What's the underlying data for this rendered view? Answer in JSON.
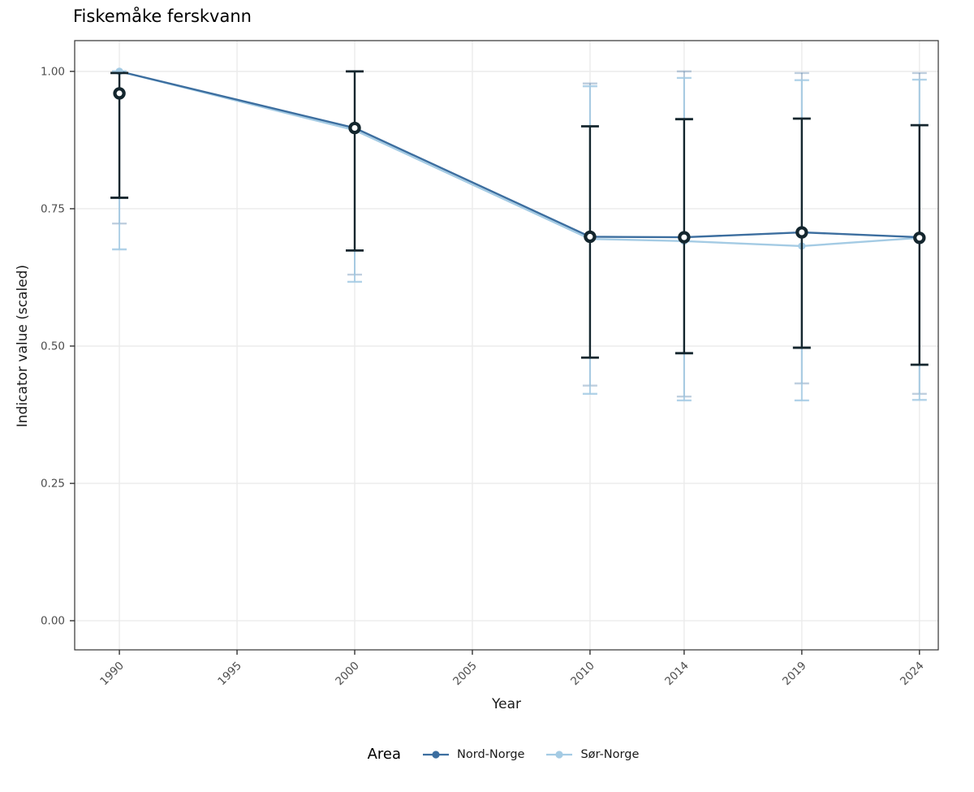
{
  "title": "Fiskemåke ferskvann",
  "axes": {
    "x_label": "Year",
    "y_label": "Indicator value (scaled)"
  },
  "legend": {
    "title": "Area",
    "items": [
      {
        "label": "Nord-Norge",
        "color": "#3c6e9f"
      },
      {
        "label": "Sør-Norge",
        "color": "#a4cbe4"
      }
    ]
  },
  "chart_data": {
    "type": "line",
    "title": "Fiskemåke ferskvann",
    "xlabel": "Year",
    "ylabel": "Indicator value (scaled)",
    "x": [
      1990,
      2000,
      2010,
      2014,
      2019,
      2024
    ],
    "x_ticks": [
      "1990",
      "1995",
      "2000",
      "2005",
      "2010",
      "2014",
      "2019",
      "2024"
    ],
    "x_tick_years": [
      1990,
      1995,
      2000,
      2005,
      2010,
      2014,
      2019,
      2024
    ],
    "y_ticks": [
      0.0,
      0.25,
      0.5,
      0.75,
      1.0
    ],
    "y_tick_labels": [
      "0.00",
      "0.25",
      "0.50",
      "0.75",
      "1.00"
    ],
    "xlim": [
      1988.1,
      2024.8
    ],
    "ylim": [
      -0.053,
      1.056
    ],
    "grid": true,
    "legend_position": "bottom",
    "colors": {
      "grid": "#ebebeb",
      "panel_border": "#333333",
      "tick_text": "#4d4d4d",
      "dark": "#14262e",
      "nord": "#3c6e9f",
      "sor": "#a4cbe4"
    },
    "series": [
      {
        "name": "Nord-Norge",
        "color": "#3c6e9f",
        "values": [
          1.0,
          0.897,
          0.699,
          0.698,
          0.707,
          0.698
        ],
        "ci_low": [
          0.723,
          0.63,
          0.428,
          0.408,
          0.432,
          0.413
        ],
        "ci_high": [
          1.0,
          1.0,
          0.978,
          1.0,
          0.997,
          0.997
        ]
      },
      {
        "name": "Sør-Norge",
        "color": "#a4cbe4",
        "values": [
          1.0,
          0.893,
          0.695,
          0.691,
          0.682,
          0.697
        ],
        "ci_low": [
          0.676,
          0.617,
          0.413,
          0.401,
          0.401,
          0.402
        ],
        "ci_high": [
          1.0,
          1.0,
          0.973,
          0.988,
          0.984,
          0.985
        ]
      }
    ],
    "overall_median": {
      "marker": "open-circle",
      "color": "#14262e",
      "values": [
        0.96,
        0.897,
        0.699,
        0.698,
        0.707,
        0.697
      ],
      "ci_low": [
        0.77,
        0.674,
        0.479,
        0.487,
        0.497,
        0.466
      ],
      "ci_high": [
        0.997,
        1.0,
        0.9,
        0.913,
        0.914,
        0.902
      ]
    }
  }
}
